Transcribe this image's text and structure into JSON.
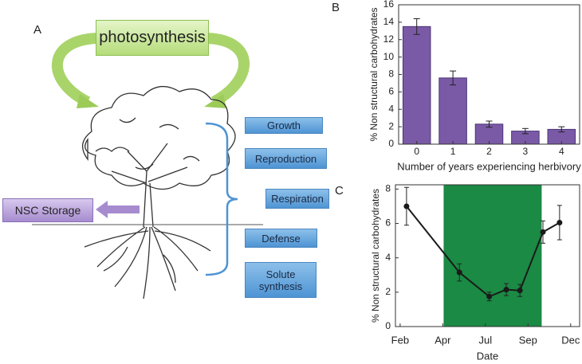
{
  "panel_a": {
    "label": "A",
    "photosynthesis": "photosynthesis",
    "storage": "NSC Storage",
    "uses": [
      "Growth",
      "Reproduction",
      "Respiration",
      "Defense",
      "Solute synthesis"
    ]
  },
  "chart_data": [
    {
      "type": "bar",
      "panel": "B",
      "xlabel": "Number of years experiencing herbivory",
      "ylabel": "% Non structural carbohydrates",
      "categories": [
        "0",
        "1",
        "2",
        "3",
        "4"
      ],
      "values": [
        13.5,
        7.6,
        2.3,
        1.5,
        1.7
      ],
      "errors": [
        0.9,
        0.8,
        0.35,
        0.3,
        0.3
      ],
      "color": "#7a5aa6",
      "ylim": [
        0,
        16
      ],
      "yticks": [
        0,
        2,
        4,
        6,
        8,
        10,
        12,
        14,
        16
      ]
    },
    {
      "type": "line",
      "panel": "C",
      "xlabel": "Date",
      "ylabel": "% Non structural carbohydrates",
      "x": [
        1.15,
        2.39,
        3.09,
        3.49,
        3.81,
        4.35,
        4.74
      ],
      "values": [
        7.0,
        3.15,
        1.75,
        2.15,
        2.1,
        5.5,
        6.05
      ],
      "errors": [
        1.1,
        0.5,
        0.25,
        0.35,
        0.35,
        0.65,
        1.0
      ],
      "color": "#1a1a1a",
      "shade": {
        "x": [
          2.02,
          4.32
        ],
        "color": "#1a8a44"
      },
      "xlim": [
        0.89,
        5.21
      ],
      "xticks": [
        {
          "value": 1,
          "label": "Feb"
        },
        {
          "value": 2,
          "label": "Apr"
        },
        {
          "value": 3,
          "label": "Jul"
        },
        {
          "value": 4,
          "label": "Sep"
        },
        {
          "value": 5,
          "label": "Dec"
        }
      ],
      "ylim": [
        0,
        8.25
      ],
      "yticks": [
        0,
        2,
        4,
        6,
        8
      ]
    }
  ]
}
